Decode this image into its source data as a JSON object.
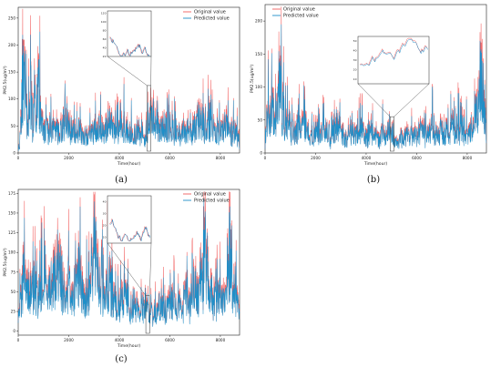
{
  "figure": {
    "captions": [
      "(a)",
      "(b)",
      "(c)"
    ]
  },
  "chart_data": [
    {
      "type": "line",
      "panel": "(a)",
      "xlabel": "Time(hour)",
      "ylabel": "PM2.5(ug/m³)",
      "xlim": [
        0,
        8760
      ],
      "ylim": [
        0,
        270
      ],
      "x_ticks": [
        0,
        2000,
        4000,
        6000,
        8000
      ],
      "y_ticks": [
        0,
        50,
        100,
        150,
        200,
        250
      ],
      "legend": {
        "position": "top-right",
        "entries": [
          "Original value",
          "Predicted value"
        ]
      },
      "colors": {
        "original": "#f15c5c",
        "predicted": "#1f8fc8"
      },
      "inset": {
        "range_x": [
          5100,
          5250
        ],
        "ylim": [
          20,
          125
        ],
        "y_ticks": [
          20,
          40,
          60,
          80,
          100,
          120
        ]
      },
      "series": [
        {
          "name": "Original value",
          "x": [
            0,
            50,
            150,
            250,
            300,
            400,
            500,
            600,
            650,
            700,
            800,
            900,
            1000,
            1200,
            1400,
            1600,
            1800,
            2000,
            2200,
            2400,
            2600,
            2800,
            3000,
            3200,
            3400,
            3600,
            3800,
            4000,
            4200,
            4400,
            4600,
            4800,
            5000,
            5200,
            5400,
            5600,
            5800,
            6000,
            6200,
            6400,
            6600,
            6800,
            7000,
            7200,
            7400,
            7600,
            7800,
            8000,
            8200,
            8400,
            8600,
            8760
          ],
          "values": [
            20,
            15,
            200,
            220,
            140,
            90,
            170,
            60,
            245,
            80,
            210,
            100,
            60,
            70,
            75,
            60,
            90,
            80,
            55,
            70,
            40,
            55,
            60,
            75,
            60,
            100,
            60,
            60,
            90,
            65,
            50,
            70,
            45,
            85,
            110,
            60,
            80,
            70,
            60,
            55,
            65,
            60,
            80,
            100,
            70,
            90,
            60,
            55,
            85,
            60,
            70,
            20
          ]
        },
        {
          "name": "Predicted value",
          "x": [
            0,
            50,
            150,
            250,
            300,
            400,
            500,
            600,
            650,
            700,
            800,
            900,
            1000,
            1200,
            1400,
            1600,
            1800,
            2000,
            2200,
            2400,
            2600,
            2800,
            3000,
            3200,
            3400,
            3600,
            3800,
            4000,
            4200,
            4400,
            4600,
            4800,
            5000,
            5200,
            5400,
            5600,
            5800,
            6000,
            6200,
            6400,
            6600,
            6800,
            7000,
            7200,
            7400,
            7600,
            7800,
            8000,
            8200,
            8400,
            8600,
            8760
          ],
          "values": [
            18,
            14,
            190,
            215,
            135,
            85,
            165,
            58,
            240,
            78,
            205,
            95,
            58,
            65,
            72,
            58,
            85,
            76,
            52,
            68,
            38,
            52,
            58,
            72,
            57,
            95,
            57,
            58,
            86,
            62,
            48,
            67,
            43,
            80,
            105,
            57,
            76,
            67,
            57,
            53,
            62,
            57,
            76,
            95,
            67,
            86,
            57,
            52,
            81,
            57,
            66,
            18
          ]
        }
      ]
    },
    {
      "type": "line",
      "panel": "(b)",
      "xlabel": "Time(hour)",
      "ylabel": "PM2.5(ug/m³)",
      "xlim": [
        0,
        8760
      ],
      "ylim": [
        0,
        225
      ],
      "x_ticks": [
        0,
        2000,
        4000,
        6000,
        8000
      ],
      "y_ticks": [
        0,
        50,
        100,
        150,
        200
      ],
      "legend": {
        "position": "top-left",
        "entries": [
          "Original value",
          "Predicted value"
        ]
      },
      "colors": {
        "original": "#f15c5c",
        "predicted": "#1f8fc8"
      },
      "inset": {
        "range_x": [
          4950,
          5100
        ],
        "ylim": [
          5,
          55
        ],
        "y_ticks": [
          10,
          20,
          30,
          40,
          50
        ]
      },
      "series": [
        {
          "name": "Original value",
          "x": [
            0,
            100,
            200,
            300,
            400,
            600,
            800,
            1000,
            1200,
            1400,
            1600,
            1800,
            2000,
            2200,
            2400,
            2600,
            2800,
            3000,
            3200,
            3400,
            3600,
            3800,
            4000,
            4200,
            4400,
            4600,
            4800,
            5000,
            5200,
            5400,
            5600,
            5800,
            6000,
            6200,
            6400,
            6600,
            6800,
            7000,
            7200,
            7400,
            7600,
            7800,
            8000,
            8200,
            8400,
            8500,
            8600,
            8760
          ],
          "values": [
            40,
            100,
            85,
            110,
            60,
            160,
            70,
            60,
            55,
            65,
            70,
            40,
            60,
            45,
            55,
            40,
            70,
            50,
            35,
            50,
            40,
            55,
            35,
            60,
            30,
            40,
            55,
            30,
            25,
            35,
            45,
            40,
            35,
            55,
            40,
            60,
            45,
            60,
            50,
            65,
            55,
            70,
            45,
            60,
            100,
            200,
            180,
            60
          ]
        },
        {
          "name": "Predicted value",
          "x": [
            0,
            100,
            200,
            300,
            400,
            600,
            800,
            1000,
            1200,
            1400,
            1600,
            1800,
            2000,
            2200,
            2400,
            2600,
            2800,
            3000,
            3200,
            3400,
            3600,
            3800,
            4000,
            4200,
            4400,
            4600,
            4800,
            5000,
            5200,
            5400,
            5600,
            5800,
            6000,
            6200,
            6400,
            6600,
            6800,
            7000,
            7200,
            7400,
            7600,
            7800,
            8000,
            8200,
            8400,
            8500,
            8600,
            8760
          ],
          "values": [
            38,
            95,
            82,
            105,
            58,
            150,
            67,
            58,
            53,
            62,
            66,
            38,
            57,
            43,
            52,
            38,
            66,
            48,
            33,
            48,
            38,
            52,
            33,
            57,
            28,
            38,
            52,
            28,
            24,
            33,
            43,
            38,
            33,
            52,
            38,
            57,
            43,
            57,
            48,
            62,
            52,
            66,
            43,
            57,
            95,
            190,
            175,
            57
          ]
        }
      ]
    },
    {
      "type": "line",
      "panel": "(c)",
      "xlabel": "Time(hour)",
      "ylabel": "PM2.5(ug/m³)",
      "xlim": [
        0,
        8760
      ],
      "ylim": [
        -5,
        180
      ],
      "x_ticks": [
        0,
        2000,
        4000,
        6000,
        8000
      ],
      "y_ticks": [
        0,
        25,
        50,
        75,
        100,
        125,
        150,
        175
      ],
      "legend": {
        "position": "top-right",
        "entries": [
          "Original value",
          "Predicted value"
        ]
      },
      "colors": {
        "original": "#f15c5c",
        "predicted": "#1f8fc8"
      },
      "inset": {
        "range_x": [
          5050,
          5200
        ],
        "ylim": [
          5,
          45
        ],
        "y_ticks": [
          10,
          20,
          30,
          40
        ]
      },
      "series": [
        {
          "name": "Original value",
          "x": [
            0,
            100,
            200,
            400,
            600,
            800,
            1000,
            1200,
            1400,
            1600,
            1800,
            2000,
            2200,
            2400,
            2600,
            2800,
            3000,
            3200,
            3400,
            3600,
            3800,
            4000,
            4200,
            4400,
            4600,
            4800,
            5000,
            5200,
            5400,
            5600,
            5800,
            6000,
            6200,
            6400,
            6600,
            6800,
            7000,
            7200,
            7400,
            7600,
            7800,
            8000,
            8200,
            8400,
            8600,
            8760
          ],
          "values": [
            30,
            60,
            110,
            70,
            90,
            60,
            120,
            80,
            100,
            145,
            75,
            95,
            70,
            120,
            60,
            85,
            175,
            90,
            70,
            110,
            60,
            50,
            80,
            40,
            55,
            35,
            60,
            30,
            40,
            50,
            45,
            60,
            55,
            40,
            70,
            50,
            100,
            60,
            150,
            80,
            60,
            70,
            55,
            140,
            70,
            30
          ]
        },
        {
          "name": "Predicted value",
          "x": [
            0,
            100,
            200,
            400,
            600,
            800,
            1000,
            1200,
            1400,
            1600,
            1800,
            2000,
            2200,
            2400,
            2600,
            2800,
            3000,
            3200,
            3400,
            3600,
            3800,
            4000,
            4200,
            4400,
            4600,
            4800,
            5000,
            5200,
            5400,
            5600,
            5800,
            6000,
            6200,
            6400,
            6600,
            6800,
            7000,
            7200,
            7400,
            7600,
            7800,
            8000,
            8200,
            8400,
            8600,
            8760
          ],
          "values": [
            28,
            57,
            105,
            67,
            86,
            57,
            114,
            76,
            95,
            138,
            71,
            90,
            67,
            114,
            57,
            81,
            165,
            86,
            67,
            105,
            57,
            48,
            76,
            38,
            52,
            33,
            57,
            28,
            38,
            48,
            43,
            57,
            52,
            38,
            67,
            48,
            95,
            57,
            143,
            76,
            57,
            67,
            52,
            133,
            67,
            28
          ]
        }
      ]
    }
  ]
}
